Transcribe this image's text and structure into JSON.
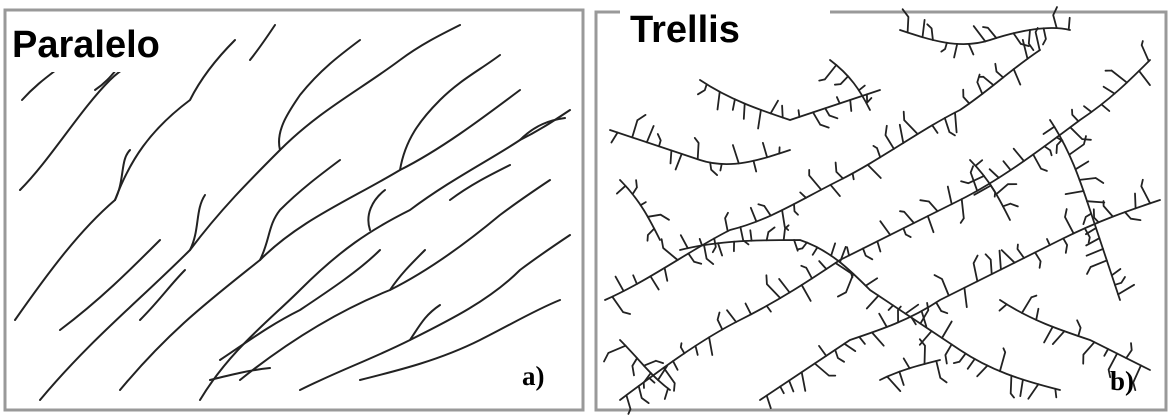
{
  "panels": [
    {
      "title": "Paralelo",
      "label": "a)"
    },
    {
      "title": "Trellis",
      "label": "b)"
    }
  ]
}
